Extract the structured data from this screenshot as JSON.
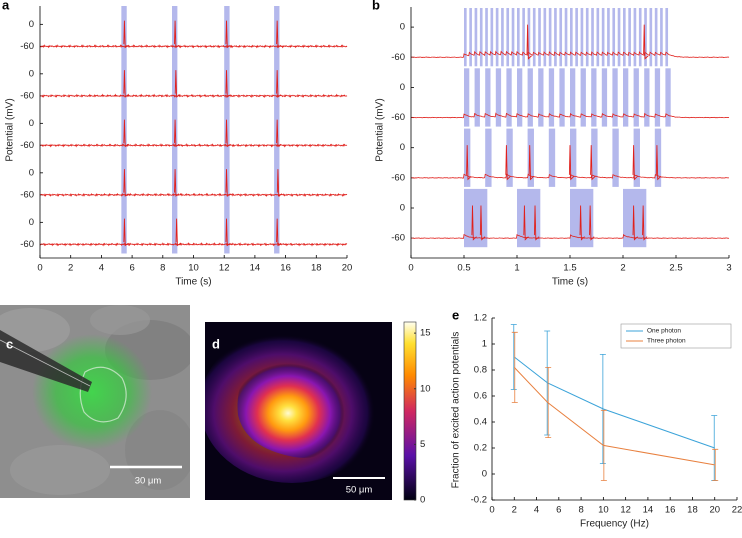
{
  "chart_data": [
    {
      "type": "trace",
      "label": "a",
      "ylabel": "Potential (mV)",
      "xlabel": "Time (s)",
      "xlim": [
        0,
        20
      ],
      "xticks": [
        0,
        2,
        4,
        6,
        8,
        10,
        12,
        14,
        16,
        18,
        20
      ],
      "ylim": [
        -85,
        50
      ],
      "resting": -60,
      "spike_peak": 10,
      "color": "#e0201c",
      "stim_color": "#b4b8ec",
      "stim_onsets": [
        5.3,
        8.6,
        12.0,
        15.25
      ],
      "stim_width": 0.35,
      "traces": [
        {
          "yticks": [
            0,
            -60
          ],
          "spikes": [
            5.5,
            8.8,
            12.15,
            15.45
          ]
        },
        {
          "yticks": [
            0,
            -60
          ],
          "spikes": [
            5.5,
            8.85,
            12.15,
            15.45
          ]
        },
        {
          "yticks": [
            0,
            -60
          ],
          "spikes": [
            5.5,
            8.8,
            12.15,
            15.45
          ]
        },
        {
          "yticks": [
            0,
            -60
          ],
          "spikes": [
            5.5,
            8.8,
            12.15,
            15.5
          ]
        },
        {
          "yticks": [
            0,
            -60
          ],
          "spikes": [
            5.5,
            8.9,
            12.15,
            15.45
          ]
        }
      ]
    },
    {
      "type": "trace",
      "label": "b",
      "ylabel": "Potential (mV)",
      "xlabel": "Time (s)",
      "xlim": [
        0,
        3
      ],
      "xticks": [
        0,
        0.5,
        1,
        1.5,
        2,
        2.5,
        3
      ],
      "ylim": [
        -80,
        40
      ],
      "resting": -60,
      "spike_peak": 5,
      "color": "#e0201c",
      "stim_color": "#b4b8ec",
      "traces": [
        {
          "yticks": [
            0,
            -60
          ],
          "stim_width": 0.025,
          "stim_onsets": [
            0.5,
            0.55,
            0.6,
            0.65,
            0.7,
            0.75,
            0.8,
            0.85,
            0.9,
            0.95,
            1,
            1.05,
            1.1,
            1.15,
            1.2,
            1.25,
            1.3,
            1.35,
            1.4,
            1.45,
            1.5,
            1.55,
            1.6,
            1.65,
            1.7,
            1.75,
            1.8,
            1.85,
            1.9,
            1.95,
            2,
            2.05,
            2.1,
            2.15,
            2.2,
            2.25,
            2.3,
            2.35,
            2.4
          ],
          "spikes": [
            1.1,
            2.2
          ]
        },
        {
          "yticks": [
            0,
            -60
          ],
          "stim_width": 0.05,
          "stim_onsets": [
            0.5,
            0.6,
            0.7,
            0.8,
            0.9,
            1,
            1.1,
            1.2,
            1.3,
            1.4,
            1.5,
            1.6,
            1.7,
            1.8,
            1.9,
            2,
            2.1,
            2.2,
            2.3,
            2.4
          ],
          "spikes": []
        },
        {
          "yticks": [
            0,
            -60
          ],
          "stim_width": 0.06,
          "stim_onsets": [
            0.5,
            0.7,
            0.9,
            1.1,
            1.3,
            1.5,
            1.7,
            1.9,
            2.1,
            2.3
          ],
          "spikes": [
            0.53,
            0.9,
            1.12,
            1.5,
            1.7,
            2.1,
            2.32
          ]
        },
        {
          "yticks": [
            0,
            -60
          ],
          "stim_width": 0.22,
          "stim_onsets": [
            0.5,
            1,
            1.5,
            2
          ],
          "spikes": [
            0.58,
            0.66,
            1.07,
            1.17,
            1.6,
            1.69,
            2.1,
            2.19
          ]
        }
      ]
    },
    {
      "type": "image",
      "label": "c",
      "scale_bar": "30 μm"
    },
    {
      "type": "heatmap",
      "label": "d",
      "scale_bar": "50 μm",
      "ylim": [
        0,
        16
      ],
      "yticks": [
        0,
        5,
        10,
        15
      ]
    },
    {
      "type": "line",
      "label": "e",
      "xlabel": "Frequency (Hz)",
      "ylabel": "Fraction of excited action potentials",
      "x": [
        2,
        5,
        10,
        20
      ],
      "xlim": [
        0,
        22
      ],
      "xticks": [
        0,
        2,
        4,
        6,
        8,
        10,
        12,
        14,
        16,
        18,
        20,
        22
      ],
      "ylim": [
        -0.2,
        1.2
      ],
      "yticks": [
        -0.2,
        0,
        0.2,
        0.4,
        0.6,
        0.8,
        1,
        1.2
      ],
      "legend": "top-right",
      "series": [
        {
          "name": "One photon",
          "color": "#3ba3d9",
          "values": [
            0.9,
            0.7,
            0.5,
            0.2
          ],
          "errors": [
            0.25,
            0.4,
            0.42,
            0.25
          ]
        },
        {
          "name": "Three photon",
          "color": "#e8803f",
          "values": [
            0.82,
            0.55,
            0.22,
            0.07
          ],
          "errors": [
            0.27,
            0.27,
            0.27,
            0.12
          ]
        }
      ]
    }
  ]
}
